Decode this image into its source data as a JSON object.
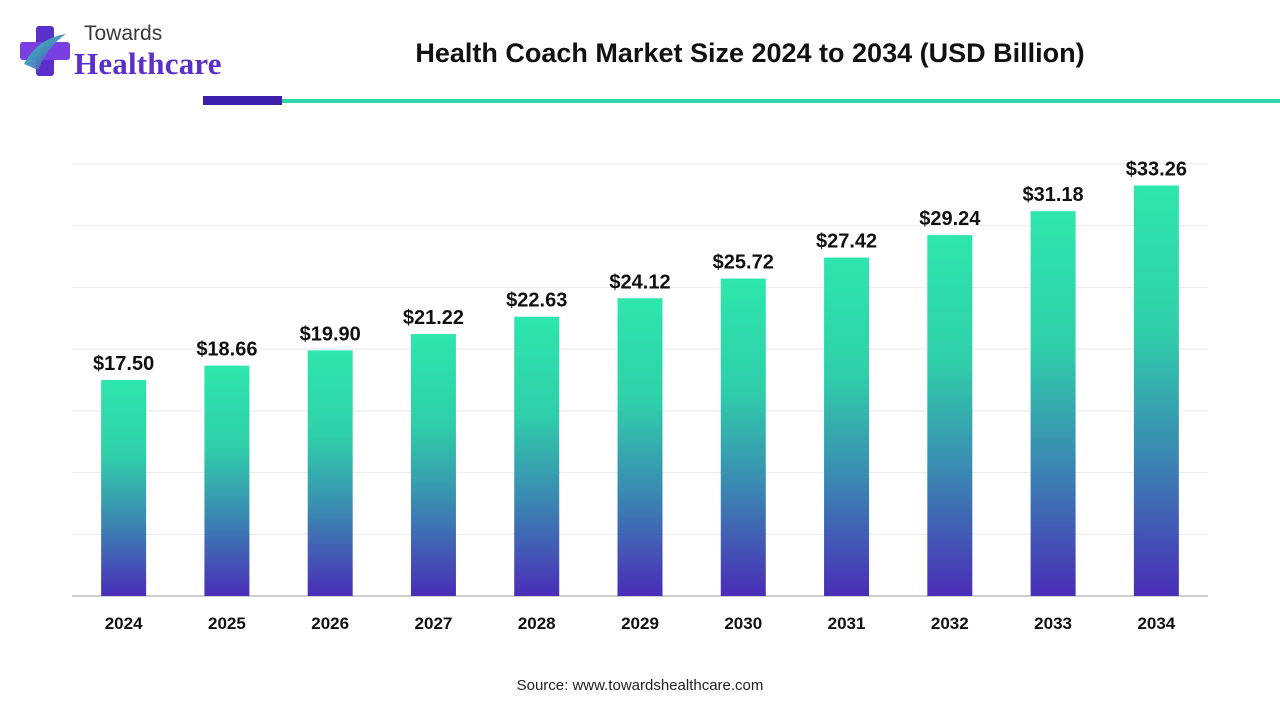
{
  "logo": {
    "line1": "Towards",
    "line2": "Healthcare",
    "icon": "plus-cross-logo-icon"
  },
  "title": "Health Coach Market Size 2024 to 2034 (USD Billion)",
  "source": "Source: www.towardshealthcare.com",
  "colors": {
    "bar_top": "#2ee6ad",
    "bar_mid": "#35a5b0",
    "bar_bottom": "#4a2db8",
    "rule_dark": "#3b1fa8",
    "rule_teal": "#2ed3a6",
    "logo_text": "#5b2fc9"
  },
  "chart_data": {
    "type": "bar",
    "categories": [
      "2024",
      "2025",
      "2026",
      "2027",
      "2028",
      "2029",
      "2030",
      "2031",
      "2032",
      "2033",
      "2034"
    ],
    "values": [
      17.5,
      18.66,
      19.9,
      21.22,
      22.63,
      24.12,
      25.72,
      27.42,
      29.24,
      31.18,
      33.26
    ],
    "value_labels": [
      "$17.50",
      "$18.66",
      "$19.90",
      "$21.22",
      "$22.63",
      "$24.12",
      "$25.72",
      "$27.42",
      "$29.24",
      "$31.18",
      "$33.26"
    ],
    "title": "Health Coach Market Size 2024 to 2034 (USD Billion)",
    "xlabel": "",
    "ylabel": "",
    "ylim": [
      0,
      35
    ],
    "grid": true,
    "legend": "none"
  }
}
